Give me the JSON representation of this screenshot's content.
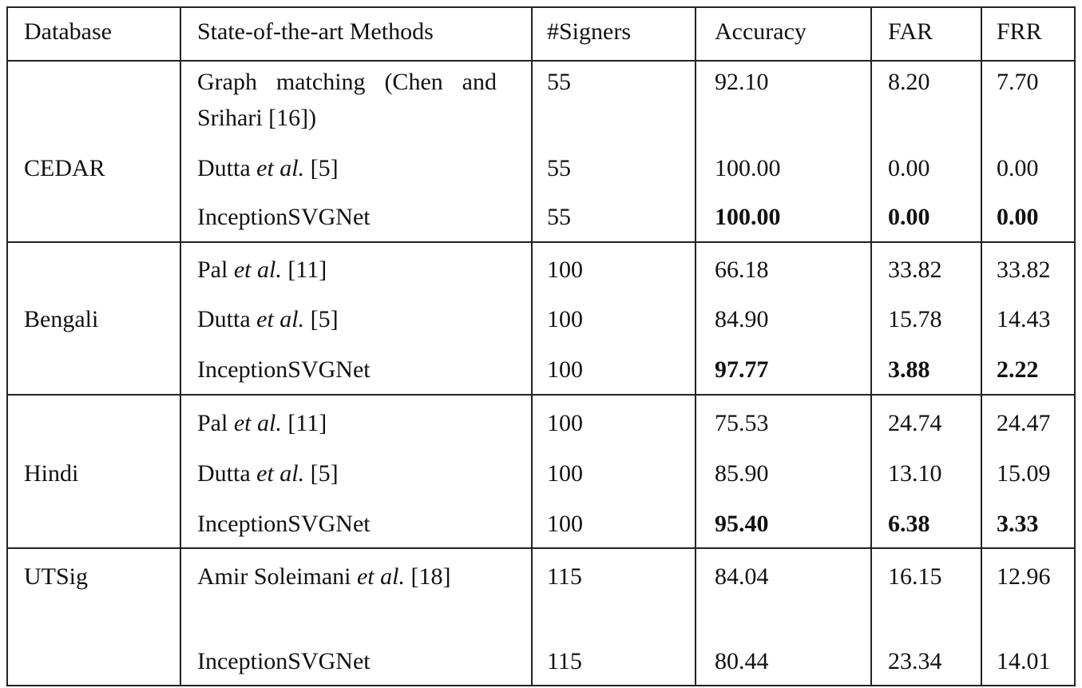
{
  "table": {
    "header": [
      "Database",
      "State-of-the-art Methods",
      "#Signers",
      "Accuracy",
      "FAR",
      "FRR"
    ],
    "groups": [
      {
        "database": "CEDAR",
        "rows": [
          {
            "method": [
              "Graph matching (Chen and Srihari [16])"
            ],
            "signers": "55",
            "accuracy": "92.10",
            "far": "8.20",
            "frr": "7.70"
          },
          {
            "method": [
              "Dutta ",
              "et al.",
              " [5]"
            ],
            "signers": "55",
            "accuracy": "100.00",
            "far": "0.00",
            "frr": "0.00"
          },
          {
            "method": [
              "InceptionSVGNet"
            ],
            "signers": "55",
            "accuracy": "100.00",
            "far": "0.00",
            "frr": "0.00",
            "bold": true
          }
        ]
      },
      {
        "database": "Bengali",
        "rows": [
          {
            "method": [
              "Pal ",
              "et al.",
              " [11]"
            ],
            "signers": "100",
            "accuracy": "66.18",
            "far": "33.82",
            "frr": "33.82"
          },
          {
            "method": [
              "Dutta ",
              "et al.",
              " [5]"
            ],
            "signers": "100",
            "accuracy": "84.90",
            "far": "15.78",
            "frr": "14.43"
          },
          {
            "method": [
              "InceptionSVGNet"
            ],
            "signers": "100",
            "accuracy": "97.77",
            "far": "3.88",
            "frr": "2.22",
            "bold": true
          }
        ]
      },
      {
        "database": "Hindi",
        "rows": [
          {
            "method": [
              "Pal ",
              "et al.",
              " [11]"
            ],
            "signers": "100",
            "accuracy": "75.53",
            "far": "24.74",
            "frr": "24.47"
          },
          {
            "method": [
              "Dutta ",
              "et al.",
              " [5]"
            ],
            "signers": "100",
            "accuracy": "85.90",
            "far": "13.10",
            "frr": "15.09"
          },
          {
            "method": [
              "InceptionSVGNet"
            ],
            "signers": "100",
            "accuracy": "95.40",
            "far": "6.38",
            "frr": "3.33",
            "bold": true
          }
        ]
      },
      {
        "database": "UTSig",
        "rows": [
          {
            "method": [
              "Amir Soleimani ",
              "et al.",
              " [18]"
            ],
            "signers": "115",
            "accuracy": "84.04",
            "far": "16.15",
            "frr": "12.96"
          },
          {
            "method": [
              "InceptionSVGNet"
            ],
            "signers": "115",
            "accuracy": "80.44",
            "far": "23.34",
            "frr": "14.01"
          }
        ]
      }
    ]
  }
}
